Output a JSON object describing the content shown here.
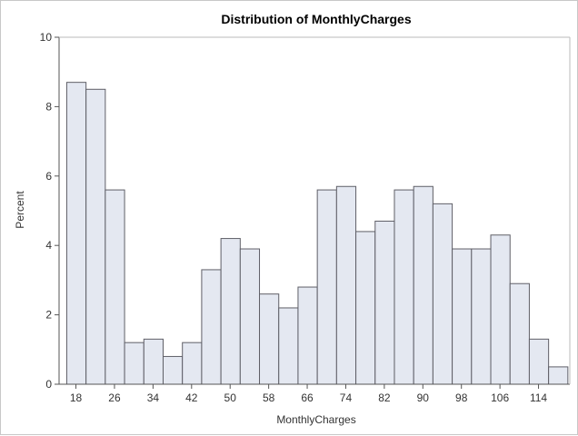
{
  "chart_data": {
    "type": "bar",
    "title": "Distribution of MonthlyCharges",
    "xlabel": "MonthlyCharges",
    "ylabel": "Percent",
    "bin_start": 16,
    "bin_width": 4,
    "values": [
      8.7,
      8.5,
      5.6,
      1.2,
      1.3,
      0.8,
      1.2,
      3.3,
      4.2,
      3.9,
      2.6,
      2.2,
      2.8,
      5.6,
      5.7,
      4.4,
      4.7,
      5.6,
      5.7,
      5.2,
      3.9,
      3.9,
      4.3,
      2.9,
      1.3,
      0.5
    ],
    "xticks": [
      18,
      26,
      34,
      42,
      50,
      58,
      66,
      74,
      82,
      90,
      98,
      106,
      114
    ],
    "xlim": [
      14.5,
      120.5
    ],
    "yticks": [
      0,
      2,
      4,
      6,
      8,
      10
    ],
    "ylim": [
      0,
      10
    ],
    "grid": false,
    "legend": "none",
    "colors": {
      "bar_fill": "#e4e8f1",
      "bar_stroke": "#5f5f67",
      "axis": "#555555",
      "text": "#333333"
    }
  }
}
